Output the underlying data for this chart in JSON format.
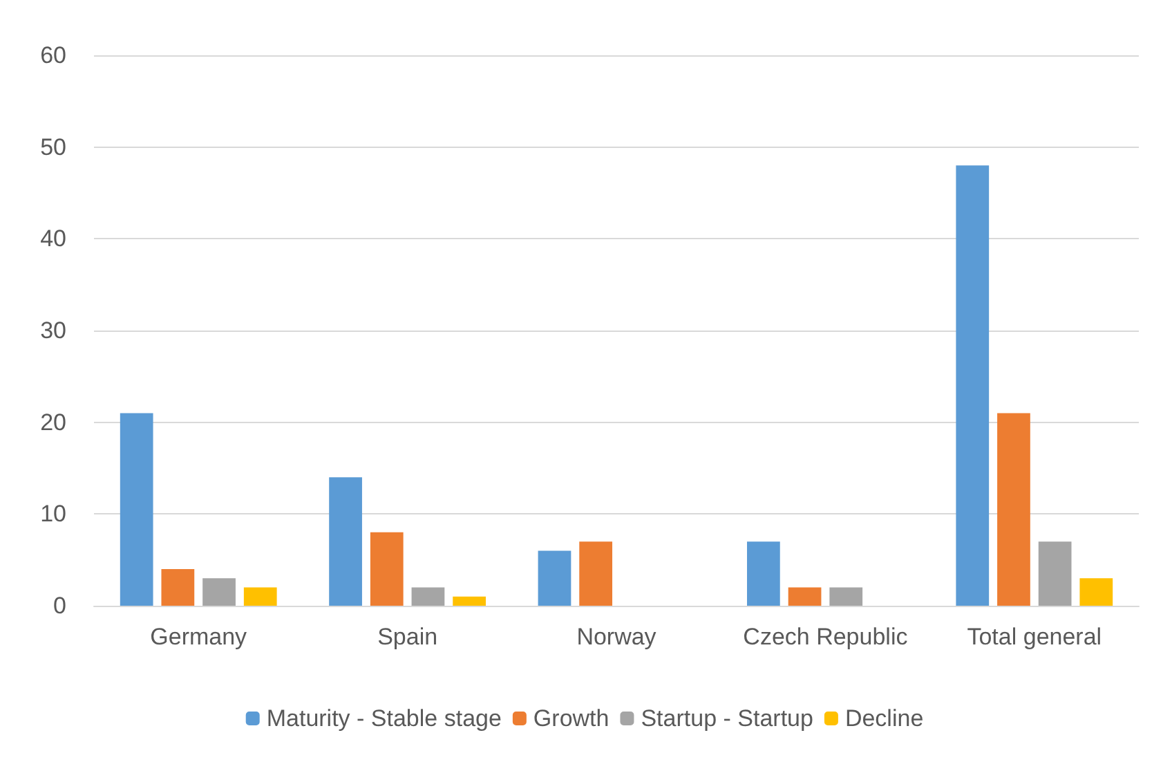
{
  "chart_data": {
    "type": "bar",
    "categories": [
      "Germany",
      "Spain",
      "Norway",
      "Czech Republic",
      "Total general"
    ],
    "series": [
      {
        "name": "Maturity - Stable stage",
        "color": "#5b9bd5",
        "values": [
          21,
          14,
          6,
          7,
          48
        ]
      },
      {
        "name": "Growth",
        "color": "#ed7d31",
        "values": [
          4,
          8,
          7,
          2,
          21
        ]
      },
      {
        "name": "Startup - Startup",
        "color": "#a5a5a5",
        "values": [
          3,
          2,
          null,
          2,
          7
        ]
      },
      {
        "name": "Decline",
        "color": "#ffc000",
        "values": [
          2,
          1,
          null,
          null,
          3
        ]
      }
    ],
    "ylim": [
      0,
      60
    ],
    "yticks": [
      0,
      10,
      20,
      30,
      40,
      50,
      60
    ],
    "grid": "y",
    "legend": "bottom"
  }
}
